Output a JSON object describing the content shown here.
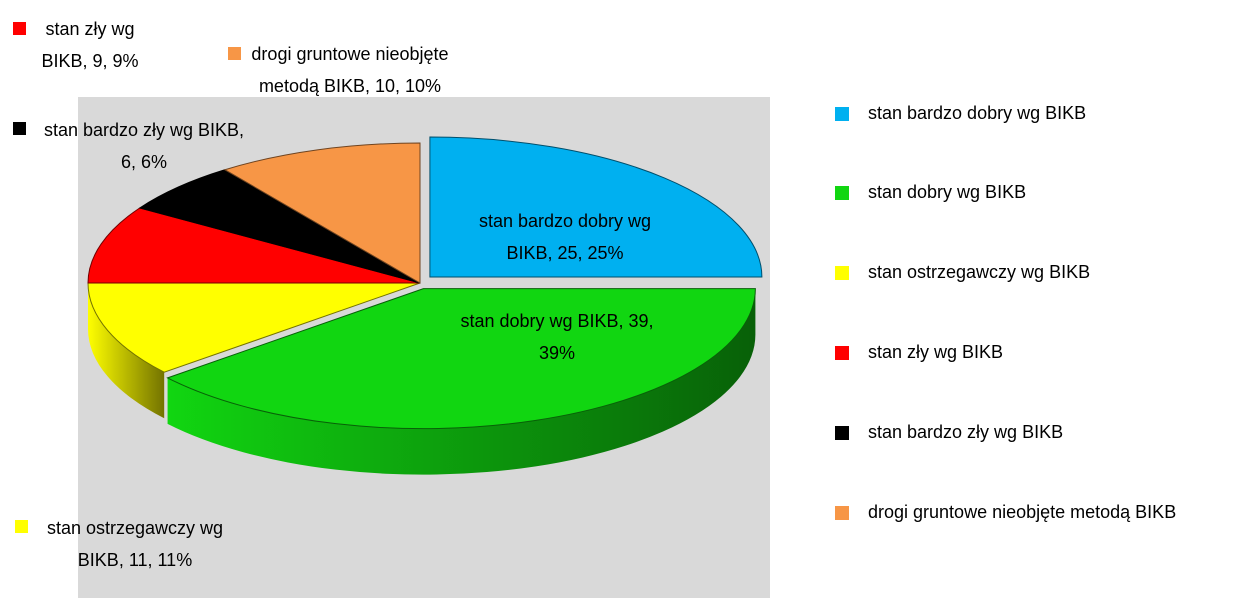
{
  "chart_data": {
    "type": "pie",
    "categories": [
      "stan bardzo dobry wg BIKB",
      "stan dobry wg BIKB",
      "stan ostrzegawczy wg BIKB",
      "stan zły wg BIKB",
      "stan bardzo zły wg BIKB",
      "drogi gruntowe nieobjęte metodą BIKB"
    ],
    "values": [
      25,
      39,
      11,
      9,
      6,
      10
    ],
    "value_labels": [
      "stan bardzo dobry wg BIKB, 25, 25%",
      "stan dobry wg BIKB, 39, 39%",
      "stan ostrzegawczy wg BIKB, 11, 11%",
      "stan zły wg BIKB, 9, 9%",
      "stan bardzo zły wg BIKB, 6, 6%",
      "drogi gruntowe nieobjęte metodą BIKB, 10, 10%"
    ],
    "colors": [
      "#00b0f0",
      "#11d611",
      "#ffff00",
      "#ff0000",
      "#000000",
      "#f79646"
    ],
    "legend": "right"
  }
}
